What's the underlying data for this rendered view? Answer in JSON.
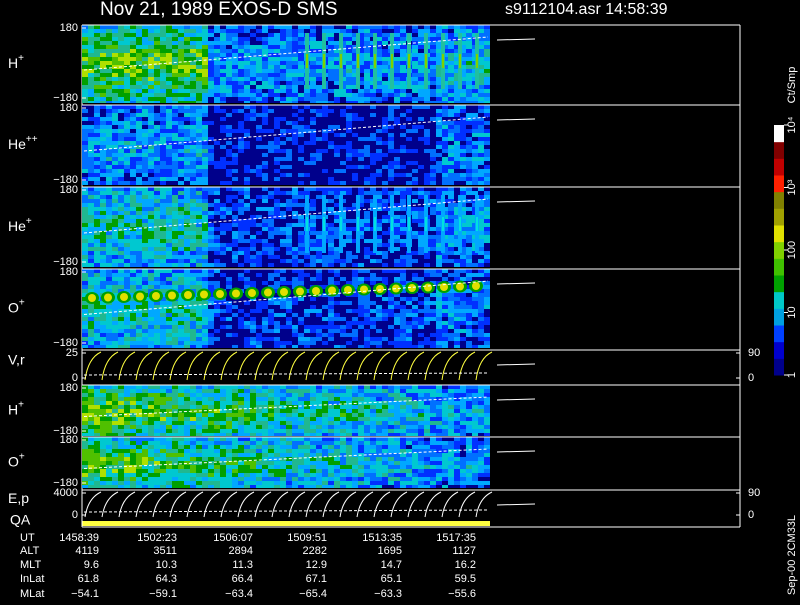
{
  "header": {
    "title": "Nov 21, 1989   EXOS-D SMS",
    "file": "s9112104.asr  14:58:39"
  },
  "panels": [
    {
      "type": "spectrogram",
      "label": "H",
      "sup": "+",
      "ylim": [
        -180,
        180
      ],
      "yticks": [
        {
          "value": -180,
          "label": "−180"
        },
        180
      ]
    },
    {
      "type": "spectrogram",
      "label": "He",
      "sup": "++",
      "ylim": [
        -180,
        180
      ],
      "yticks": [
        {
          "value": -180,
          "label": "−180"
        },
        180
      ]
    },
    {
      "type": "spectrogram",
      "label": "He",
      "sup": "+",
      "ylim": [
        -180,
        180
      ],
      "yticks": [
        {
          "value": -180,
          "label": "−180"
        },
        180
      ]
    },
    {
      "type": "spectrogram",
      "label": "O",
      "sup": "+",
      "ylim": [
        -180,
        180
      ],
      "yticks": [
        {
          "value": -180,
          "label": "−180"
        },
        180
      ]
    },
    {
      "type": "trace",
      "label": "V,r",
      "ylim": [
        0,
        25
      ],
      "yticks": [
        0,
        25
      ],
      "y2lim": [
        0,
        90
      ],
      "y2ticks": [
        0,
        90
      ]
    },
    {
      "type": "spectrogram",
      "label": "H",
      "sup": "+",
      "ylim": [
        -180,
        180
      ],
      "yticks": [
        {
          "value": -180,
          "label": "−180"
        },
        180
      ]
    },
    {
      "type": "spectrogram",
      "label": "O",
      "sup": "+",
      "ylim": [
        -180,
        180
      ],
      "yticks": [
        {
          "value": -180,
          "label": "−180"
        },
        180
      ]
    },
    {
      "type": "trace",
      "label": "E,p",
      "ylim": [
        0,
        4000
      ],
      "yticks": [
        0,
        4000
      ],
      "y2lim": [
        0,
        90
      ],
      "y2ticks": [
        0,
        90
      ]
    }
  ],
  "qa_label": "QA",
  "colorbar": {
    "label": "Ct/Smp",
    "lim": [
      1,
      10000
    ],
    "ticks": [
      1,
      10,
      100,
      {
        "value": 1000,
        "label": "10³"
      },
      {
        "value": 10000,
        "label": "10⁴"
      }
    ]
  },
  "footer_note": "Sep-00  2CM33L",
  "table": {
    "rows": [
      [
        "UT",
        "1458:39",
        "1502:23",
        "1506:07",
        "1509:51",
        "1513:35",
        "1517:35"
      ],
      [
        "ALT",
        "4119",
        "3511",
        "2894",
        "2282",
        "1695",
        "1127"
      ],
      [
        "MLT",
        "9.6",
        "10.3",
        "11.3",
        "12.9",
        "14.7",
        "16.2"
      ],
      [
        "InLat",
        "61.8",
        "64.3",
        "66.4",
        "67.1",
        "65.1",
        "59.5"
      ],
      [
        "MLat",
        "−54.1",
        "−59.1",
        "−63.4",
        "−65.4",
        "−63.3",
        "−55.6"
      ]
    ]
  }
}
